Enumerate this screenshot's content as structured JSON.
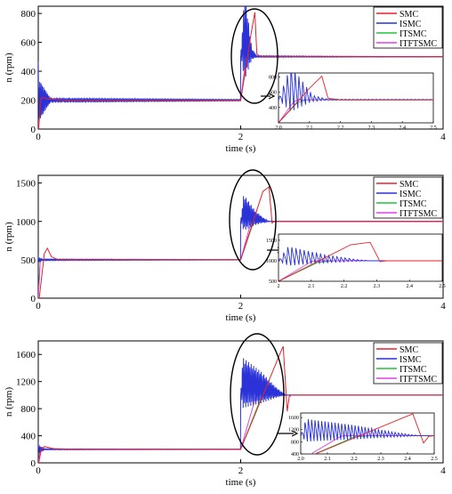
{
  "colors": {
    "SMC": "#e8202a",
    "ISMC": "#2a32d8",
    "ITSMC": "#21c43a",
    "ITFTSMC": "#e040e8"
  },
  "chart_data": [
    {
      "type": "line",
      "xlabel": "time (s)",
      "ylabel": "n (rpm)",
      "xlim": [
        0,
        4
      ],
      "ylim": [
        0,
        850
      ],
      "xticks": [
        0,
        2,
        4
      ],
      "yticks": [
        0,
        200,
        400,
        600,
        800
      ],
      "legend": "top-right",
      "legend_entries": [
        "SMC",
        "ISMC",
        "ITSMC",
        "ITFTSMC"
      ],
      "steps": [
        [
          0,
          200
        ],
        [
          2,
          500
        ]
      ],
      "series": [
        {
          "name": "SMC",
          "points": [
            [
              0,
              0
            ],
            [
              0.005,
              0
            ],
            [
              0.02,
              200
            ],
            [
              0.04,
              220
            ],
            [
              0.1,
              208
            ],
            [
              0.25,
              200
            ],
            [
              1.999,
              200
            ],
            [
              2.0,
              200
            ],
            [
              2.1,
              650
            ],
            [
              2.14,
              808
            ],
            [
              2.16,
              520
            ],
            [
              2.2,
              500
            ],
            [
              4,
              500
            ]
          ]
        },
        {
          "name": "ISMC",
          "osc_amp": [
            [
              0,
              300
            ],
            [
              0.12,
              25
            ],
            [
              2,
              10
            ],
            [
              2.04,
              620
            ],
            [
              2.11,
              80
            ],
            [
              2.16,
              10
            ],
            [
              4,
              0
            ]
          ]
        },
        {
          "name": "ITSMC",
          "points": [
            [
              0,
              0
            ],
            [
              0.02,
              200
            ],
            [
              2.0,
              200
            ],
            [
              2.06,
              460
            ],
            [
              2.09,
              500
            ],
            [
              4,
              500
            ]
          ]
        },
        {
          "name": "ITFTSMC",
          "points": [
            [
              0,
              0
            ],
            [
              0.02,
              200
            ],
            [
              2.0,
              200
            ],
            [
              2.05,
              480
            ],
            [
              2.07,
              500
            ],
            [
              4,
              500
            ]
          ]
        }
      ],
      "inset": {
        "xlim": [
          2.0,
          2.5
        ],
        "ylim": [
          200,
          850
        ],
        "xticks": [
          2.0,
          2.1,
          2.2,
          2.3,
          2.4,
          2.5
        ],
        "yticks": [
          400,
          600,
          800
        ],
        "tick_labels_x": [
          "2.0",
          "2.1",
          "2.2",
          "2.3",
          "2.4",
          "2.5"
        ],
        "tick_labels_y": [
          "400",
          "600",
          "800"
        ]
      }
    },
    {
      "type": "line",
      "xlabel": "time (s)",
      "ylabel": "n (rpm)",
      "xlim": [
        0,
        4
      ],
      "ylim": [
        0,
        1600
      ],
      "xticks": [
        0,
        2,
        4
      ],
      "yticks": [
        0,
        500,
        1000,
        1500
      ],
      "legend": "top-right",
      "legend_entries": [
        "SMC",
        "ISMC",
        "ITSMC",
        "ITFTSMC"
      ],
      "steps": [
        [
          0,
          500
        ],
        [
          2,
          1000
        ]
      ],
      "series": [
        {
          "name": "SMC",
          "points": [
            [
              0,
              0
            ],
            [
              0.01,
              0
            ],
            [
              0.06,
              580
            ],
            [
              0.09,
              650
            ],
            [
              0.13,
              540
            ],
            [
              0.2,
              500
            ],
            [
              1.999,
              500
            ],
            [
              2.0,
              500
            ],
            [
              2.22,
              1390
            ],
            [
              2.28,
              1450
            ],
            [
              2.31,
              980
            ],
            [
              2.33,
              1000
            ],
            [
              4,
              1000
            ]
          ]
        },
        {
          "name": "ISMC",
          "osc_amp": [
            [
              0,
              60
            ],
            [
              0.04,
              20
            ],
            [
              2,
              5
            ],
            [
              2.03,
              480
            ],
            [
              2.14,
              200
            ],
            [
              2.24,
              40
            ],
            [
              2.28,
              0
            ],
            [
              4,
              0
            ]
          ]
        },
        {
          "name": "ITSMC",
          "points": [
            [
              0,
              0
            ],
            [
              0.02,
              500
            ],
            [
              2.0,
              500
            ],
            [
              2.12,
              960
            ],
            [
              2.17,
              1000
            ],
            [
              4,
              1000
            ]
          ]
        },
        {
          "name": "ITFTSMC",
          "points": [
            [
              0,
              0
            ],
            [
              0.02,
              500
            ],
            [
              2.0,
              500
            ],
            [
              2.1,
              980
            ],
            [
              2.12,
              1000
            ],
            [
              4,
              1000
            ]
          ]
        }
      ],
      "inset": {
        "xlim": [
          2.0,
          2.5
        ],
        "ylim": [
          500,
          1650
        ],
        "xticks": [
          2.0,
          2.1,
          2.2,
          2.3,
          2.4,
          2.5
        ],
        "yticks": [
          500,
          1000,
          1500
        ],
        "tick_labels_x": [
          "2",
          "2.1",
          "2.2",
          "2.3",
          "2.4",
          "2.5"
        ],
        "tick_labels_y": [
          "500",
          "1000",
          "1500"
        ]
      }
    },
    {
      "type": "line",
      "xlabel": "time (s)",
      "ylabel": "n (rpm)",
      "xlim": [
        0,
        4
      ],
      "ylim": [
        0,
        1800
      ],
      "xticks": [
        0,
        2,
        4
      ],
      "yticks": [
        0,
        400,
        800,
        1200,
        1600
      ],
      "legend": "top-right",
      "legend_entries": [
        "SMC",
        "ISMC",
        "ITSMC",
        "ITFTSMC"
      ],
      "steps": [
        [
          0,
          200
        ],
        [
          2,
          1000
        ]
      ],
      "series": [
        {
          "name": "SMC",
          "points": [
            [
              0,
              0
            ],
            [
              0.005,
              0
            ],
            [
              0.03,
              200
            ],
            [
              0.06,
              240
            ],
            [
              0.15,
              210
            ],
            [
              0.3,
              200
            ],
            [
              1.999,
              200
            ],
            [
              2.0,
              200
            ],
            [
              2.38,
              1580
            ],
            [
              2.42,
              1720
            ],
            [
              2.46,
              760
            ],
            [
              2.48,
              980
            ],
            [
              2.5,
              1000
            ],
            [
              4,
              1000
            ]
          ]
        },
        {
          "name": "ISMC",
          "osc_amp": [
            [
              0,
              120
            ],
            [
              0.06,
              15
            ],
            [
              2,
              5
            ],
            [
              2.02,
              760
            ],
            [
              2.2,
              480
            ],
            [
              2.35,
              160
            ],
            [
              2.42,
              40
            ],
            [
              2.45,
              0
            ],
            [
              4,
              0
            ]
          ]
        },
        {
          "name": "ITSMC",
          "points": [
            [
              0,
              0
            ],
            [
              0.02,
              200
            ],
            [
              2.0,
              200
            ],
            [
              2.2,
              960
            ],
            [
              2.26,
              1000
            ],
            [
              4,
              1000
            ]
          ]
        },
        {
          "name": "ITFTSMC",
          "points": [
            [
              0,
              0
            ],
            [
              0.02,
              200
            ],
            [
              2.0,
              200
            ],
            [
              2.15,
              980
            ],
            [
              2.17,
              1000
            ],
            [
              4,
              1000
            ]
          ]
        }
      ],
      "inset": {
        "xlim": [
          2.0,
          2.5
        ],
        "ylim": [
          400,
          1750
        ],
        "xticks": [
          2.0,
          2.1,
          2.2,
          2.3,
          2.4,
          2.5
        ],
        "yticks": [
          400,
          800,
          1200,
          1600
        ],
        "tick_labels_x": [
          "2.0",
          "2.1",
          "2.2",
          "2.3",
          "2.4",
          "2.5"
        ],
        "tick_labels_y": [
          "400",
          "800",
          "1200",
          "1600"
        ]
      }
    }
  ]
}
